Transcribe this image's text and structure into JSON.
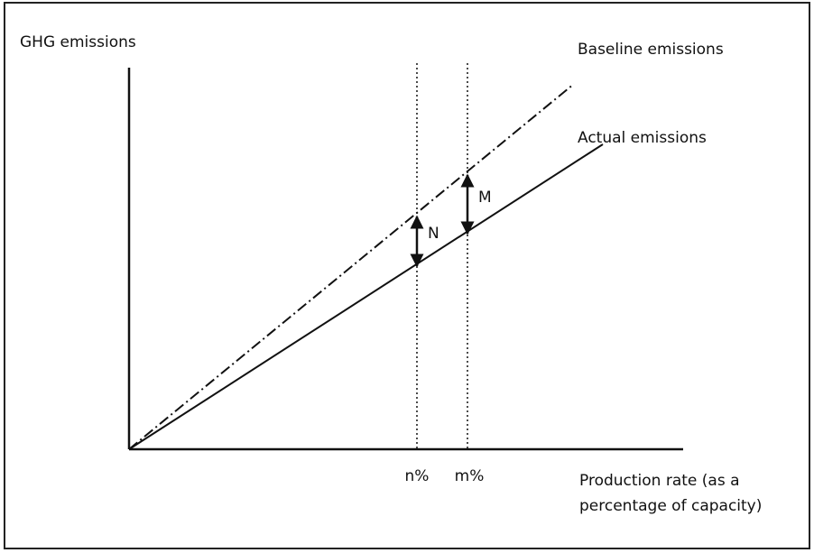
{
  "y_axis_label": "GHG emissions",
  "lines": {
    "baseline": "Baseline emissions",
    "actual": "Actual emissions"
  },
  "gaps": {
    "n": "N",
    "m": "M"
  },
  "x_markers": {
    "n": "n%",
    "m": "m%"
  },
  "x_axis_label": [
    "Production rate (as a",
    "percentage of capacity)"
  ]
}
